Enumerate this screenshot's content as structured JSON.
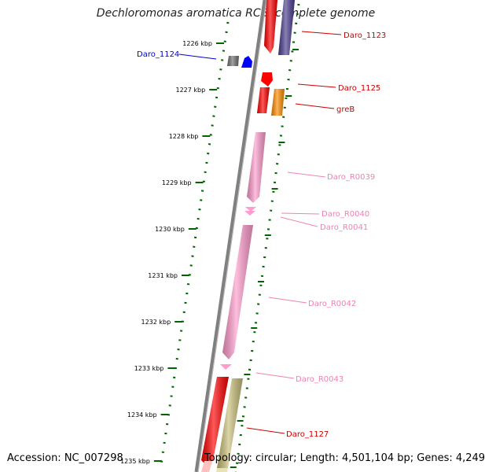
{
  "title": "Dechloromonas aromatica RCB, complete genome",
  "footer": {
    "accession": "Accession: NC_007298",
    "topology": "Topology: circular; Length: 4,501,104 bp; Genes: 4,249"
  },
  "scale": {
    "ticks": [
      {
        "label": "1226 kbp"
      },
      {
        "label": "1227 kbp"
      },
      {
        "label": "1228 kbp"
      },
      {
        "label": "1229 kbp"
      },
      {
        "label": "1230 kbp"
      },
      {
        "label": "1231 kbp"
      },
      {
        "label": "1232 kbp"
      },
      {
        "label": "1233 kbp"
      },
      {
        "label": "1234 kbp"
      },
      {
        "label": "1235 kbp"
      }
    ]
  },
  "features": [
    {
      "name": "Daro_1123",
      "color": "#cc0000",
      "fill": "#ff0000"
    },
    {
      "name": "Daro_1124",
      "color": "#0000cc",
      "fill": "#0000ff"
    },
    {
      "name": "Daro_1125",
      "color": "#cc0000",
      "fill": "#ff0000"
    },
    {
      "name": "greB",
      "color": "#cc0000",
      "fill": "#ff8c00"
    },
    {
      "name": "Daro_R0039",
      "color": "#ee82b4",
      "fill": "#ff9ccd"
    },
    {
      "name": "Daro_R0040",
      "color": "#ee82b4",
      "fill": "#ff9ccd"
    },
    {
      "name": "Daro_R0041",
      "color": "#ee82b4",
      "fill": "#ff9ccd"
    },
    {
      "name": "Daro_R0042",
      "color": "#ee82b4",
      "fill": "#ff9ccd"
    },
    {
      "name": "Daro_R0043",
      "color": "#ee82b4",
      "fill": "#ff9ccd"
    },
    {
      "name": "Daro_1127",
      "color": "#cc0000",
      "fill": "#ff0000"
    }
  ],
  "colors": {
    "backbone": "#808080",
    "tick_marks": "#006400",
    "cds_red": "#ff0000",
    "cds_navy": "#4b3d8f",
    "cds_grey": "#707070",
    "cds_khaki": "#c8bf7a"
  }
}
